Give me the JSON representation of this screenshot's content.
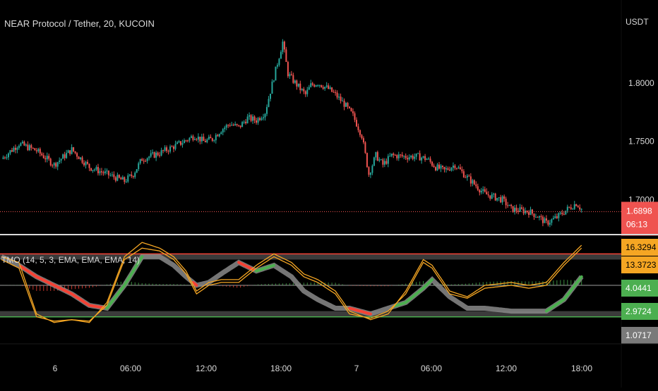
{
  "header": {
    "symbol_title": "NEAR Protocol / Tether, 20, KUCOIN",
    "currency": "USDT"
  },
  "indicator": {
    "title": "TMO (14, 5, 3, EMA, EMA, EMA, 14)"
  },
  "colors": {
    "up": "#26a69a",
    "down": "#ef5350",
    "fast_line": "#f5a623",
    "signal_bull": "#4caf50",
    "signal_bear": "#f44336",
    "signal_neutral": "#8a8a8a",
    "ob_line": "#f44336",
    "os_line": "#4caf50"
  },
  "chart_data": [
    {
      "type": "candlestick",
      "title": "NEAR Protocol / Tether, 20, KUCOIN",
      "y_axis": {
        "unit": "USDT",
        "ticks": [
          1.7,
          1.75,
          1.8
        ],
        "tick_labels": [
          "1.7000",
          "1.7500",
          "1.8000"
        ],
        "range": [
          1.675,
          1.865
        ]
      },
      "x_axis": {
        "tick_labels": [
          "6",
          "06:00",
          "12:00",
          "18:00",
          "7",
          "06:00",
          "12:00",
          "18:00"
        ]
      },
      "last_price": {
        "value": 1.6898,
        "label": "1.6898",
        "countdown": "06:13"
      },
      "close_path": [
        [
          0,
          1.735
        ],
        [
          10,
          1.748
        ],
        [
          20,
          1.742
        ],
        [
          30,
          1.73
        ],
        [
          40,
          1.743
        ],
        [
          50,
          1.728
        ],
        [
          60,
          1.722
        ],
        [
          70,
          1.716
        ],
        [
          75,
          1.722
        ],
        [
          80,
          1.735
        ],
        [
          90,
          1.74
        ],
        [
          100,
          1.747
        ],
        [
          110,
          1.755
        ],
        [
          115,
          1.75
        ],
        [
          120,
          1.752
        ],
        [
          125,
          1.76
        ],
        [
          130,
          1.765
        ],
        [
          135,
          1.762
        ],
        [
          140,
          1.77
        ],
        [
          145,
          1.768
        ],
        [
          150,
          1.775
        ],
        [
          155,
          1.805
        ],
        [
          160,
          1.835
        ],
        [
          163,
          1.808
        ],
        [
          166,
          1.802
        ],
        [
          170,
          1.795
        ],
        [
          173,
          1.79
        ],
        [
          176,
          1.798
        ],
        [
          180,
          1.8
        ],
        [
          186,
          1.795
        ],
        [
          190,
          1.79
        ],
        [
          195,
          1.782
        ],
        [
          200,
          1.772
        ],
        [
          205,
          1.755
        ],
        [
          209,
          1.722
        ],
        [
          213,
          1.738
        ],
        [
          217,
          1.73
        ],
        [
          222,
          1.738
        ],
        [
          230,
          1.737
        ],
        [
          237,
          1.737
        ],
        [
          242,
          1.735
        ],
        [
          247,
          1.728
        ],
        [
          252,
          1.725
        ],
        [
          258,
          1.73
        ],
        [
          263,
          1.722
        ],
        [
          270,
          1.712
        ],
        [
          275,
          1.705
        ],
        [
          285,
          1.7
        ],
        [
          290,
          1.692
        ],
        [
          300,
          1.69
        ],
        [
          305,
          1.686
        ],
        [
          310,
          1.68
        ],
        [
          316,
          1.685
        ],
        [
          322,
          1.692
        ],
        [
          327,
          1.697
        ],
        [
          330,
          1.692
        ]
      ]
    },
    {
      "type": "line",
      "title": "TMO (14, 5, 3, EMA, EMA, EMA, 14)",
      "y_axis": {
        "range": [
          -16,
          16
        ],
        "price_labels": [
          {
            "value": 16.3294,
            "label": "16.3294",
            "color": "#f5a623"
          },
          {
            "value": 13.3723,
            "label": "13.3723",
            "color": "#f5a623"
          },
          {
            "value": 4.0441,
            "label": "4.0441",
            "color": "#4caf50"
          },
          {
            "value": 2.9724,
            "label": "2.9724",
            "color": "#4caf50"
          },
          {
            "value": 1.0717,
            "label": "1.0717",
            "color": "#7a7a7a"
          }
        ]
      },
      "levels": {
        "overbought": 11,
        "upper": 9,
        "mid": 0,
        "lower": -9,
        "oversold": -11
      },
      "series": [
        {
          "role": "fast",
          "values": [
            [
              0,
              10
            ],
            [
              10,
              8
            ],
            [
              20,
              -10
            ],
            [
              30,
              -13
            ],
            [
              40,
              -12
            ],
            [
              50,
              -13
            ],
            [
              60,
              -6
            ],
            [
              70,
              10
            ],
            [
              80,
              15
            ],
            [
              90,
              13
            ],
            [
              98,
              10
            ],
            [
              105,
              5
            ],
            [
              111,
              -2
            ],
            [
              118,
              1
            ],
            [
              125,
              2
            ],
            [
              135,
              2
            ],
            [
              145,
              7
            ],
            [
              155,
              11
            ],
            [
              165,
              8
            ],
            [
              172,
              4
            ],
            [
              180,
              2
            ],
            [
              190,
              -2
            ],
            [
              198,
              -9
            ],
            [
              210,
              -12
            ],
            [
              220,
              -10
            ],
            [
              230,
              -2
            ],
            [
              240,
              9
            ],
            [
              245,
              7
            ],
            [
              255,
              -2
            ],
            [
              265,
              -4
            ],
            [
              275,
              0
            ],
            [
              290,
              1
            ],
            [
              300,
              0
            ],
            [
              310,
              1
            ],
            [
              320,
              8
            ],
            [
              330,
              14
            ]
          ]
        },
        {
          "role": "slow",
          "values": [
            [
              0,
              9
            ],
            [
              10,
              6
            ],
            [
              20,
              -11
            ],
            [
              30,
              -12.5
            ],
            [
              40,
              -12
            ],
            [
              50,
              -12.5
            ],
            [
              60,
              -7
            ],
            [
              70,
              9
            ],
            [
              80,
              13
            ],
            [
              90,
              12
            ],
            [
              98,
              9
            ],
            [
              105,
              4
            ],
            [
              111,
              -3
            ],
            [
              118,
              0
            ],
            [
              125,
              1
            ],
            [
              135,
              1
            ],
            [
              145,
              6
            ],
            [
              155,
              10
            ],
            [
              165,
              7
            ],
            [
              172,
              3
            ],
            [
              180,
              1
            ],
            [
              190,
              -3
            ],
            [
              198,
              -10
            ],
            [
              210,
              -11.5
            ],
            [
              220,
              -9
            ],
            [
              230,
              -3
            ],
            [
              240,
              8
            ],
            [
              245,
              6
            ],
            [
              255,
              -3
            ],
            [
              265,
              -4.5
            ],
            [
              275,
              -1
            ],
            [
              290,
              0
            ],
            [
              300,
              -1
            ],
            [
              310,
              0
            ],
            [
              320,
              7
            ],
            [
              330,
              13
            ]
          ]
        },
        {
          "role": "signal",
          "values": [
            [
              0,
              10
            ],
            [
              10,
              7
            ],
            [
              20,
              3
            ],
            [
              30,
              0
            ],
            [
              40,
              -3
            ],
            [
              50,
              -7
            ],
            [
              60,
              -8
            ],
            [
              70,
              0
            ],
            [
              80,
              10
            ],
            [
              90,
              10
            ],
            [
              98,
              7
            ],
            [
              105,
              3
            ],
            [
              111,
              0
            ],
            [
              118,
              1
            ],
            [
              125,
              4
            ],
            [
              135,
              8
            ],
            [
              145,
              5
            ],
            [
              155,
              7
            ],
            [
              165,
              3
            ],
            [
              172,
              -2
            ],
            [
              180,
              -5
            ],
            [
              190,
              -8
            ],
            [
              198,
              -8
            ],
            [
              210,
              -10
            ],
            [
              220,
              -8
            ],
            [
              230,
              -6
            ],
            [
              240,
              -1
            ],
            [
              245,
              2
            ],
            [
              255,
              -4
            ],
            [
              265,
              -8
            ],
            [
              275,
              -8
            ],
            [
              290,
              -9
            ],
            [
              300,
              -9
            ],
            [
              310,
              -9
            ],
            [
              320,
              -5
            ],
            [
              330,
              3
            ]
          ]
        }
      ]
    }
  ]
}
